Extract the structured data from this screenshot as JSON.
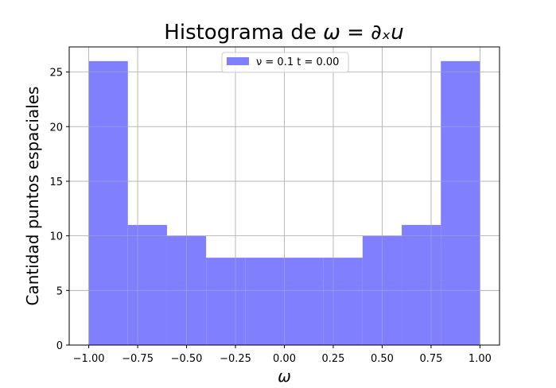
{
  "chart_data": {
    "type": "bar",
    "title_main": "Histograma de ",
    "title_math": "ω = ∂ₓu",
    "xlabel": "ω",
    "ylabel": "Cantidad puntos espaciales",
    "bin_edges": [
      -1.0,
      -0.8,
      -0.6,
      -0.4,
      -0.2,
      0.0,
      0.2,
      0.4,
      0.6,
      0.8,
      1.0
    ],
    "values": [
      26,
      11,
      10,
      8,
      8,
      8,
      8,
      10,
      11,
      26
    ],
    "xlim": [
      -1.1,
      1.1
    ],
    "ylim": [
      0,
      27.3
    ],
    "xticks": [
      -1.0,
      -0.75,
      -0.5,
      -0.25,
      0.0,
      0.25,
      0.5,
      0.75,
      1.0
    ],
    "xtick_labels": [
      "−1.00",
      "−0.75",
      "−0.50",
      "−0.25",
      "0.00",
      "0.25",
      "0.50",
      "0.75",
      "1.00"
    ],
    "yticks": [
      0,
      5,
      10,
      15,
      20,
      25
    ],
    "ytick_labels": [
      "0",
      "5",
      "10",
      "15",
      "20",
      "25"
    ],
    "grid": true,
    "legend_position": "top-center",
    "series": [
      {
        "name": "ν = 0.1 t = 0.00",
        "color": "#8080ff"
      }
    ]
  }
}
